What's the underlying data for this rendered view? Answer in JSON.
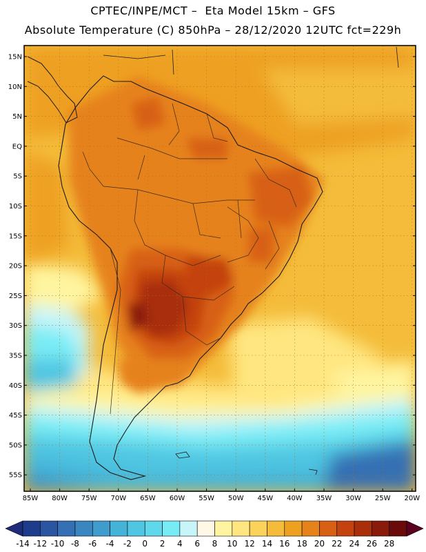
{
  "header": {
    "line1": "CPTEC/INPE/MCT –  Eta Model 15km – GFS",
    "line2": "Absolute Temperature (C) 850hPa – 28/12/2020 12UTC fct=229h"
  },
  "map": {
    "region": "South America",
    "lat_ticks": [
      "15N",
      "10N",
      "5N",
      "EQ",
      "5S",
      "10S",
      "15S",
      "20S",
      "25S",
      "30S",
      "35S",
      "40S",
      "45S",
      "50S",
      "55S"
    ],
    "lon_ticks": [
      "85W",
      "80W",
      "75W",
      "70W",
      "65W",
      "60W",
      "55W",
      "50W",
      "45W",
      "40W",
      "35W",
      "30W",
      "25W",
      "20W"
    ]
  },
  "colorbar": {
    "labels": [
      "-14",
      "-12",
      "-10",
      "-8",
      "-6",
      "-4",
      "-2",
      "0",
      "2",
      "4",
      "6",
      "8",
      "10",
      "12",
      "14",
      "16",
      "18",
      "20",
      "22",
      "24",
      "26",
      "28"
    ],
    "colors": [
      "#1e3c8c",
      "#2a55a0",
      "#3470b3",
      "#3a86c0",
      "#3f9ccc",
      "#45b2d8",
      "#4fc6e2",
      "#60d8ec",
      "#78ecf5",
      "#c8f5fa",
      "#fff8e6",
      "#fff5a0",
      "#ffe680",
      "#fbd35a",
      "#f4bc3a",
      "#eea020",
      "#e6821a",
      "#d86014",
      "#c44210",
      "#a82e0c",
      "#8a1a0a",
      "#6a0a0a"
    ],
    "under_color": "#1e2c7a",
    "over_color": "#5a0020"
  }
}
